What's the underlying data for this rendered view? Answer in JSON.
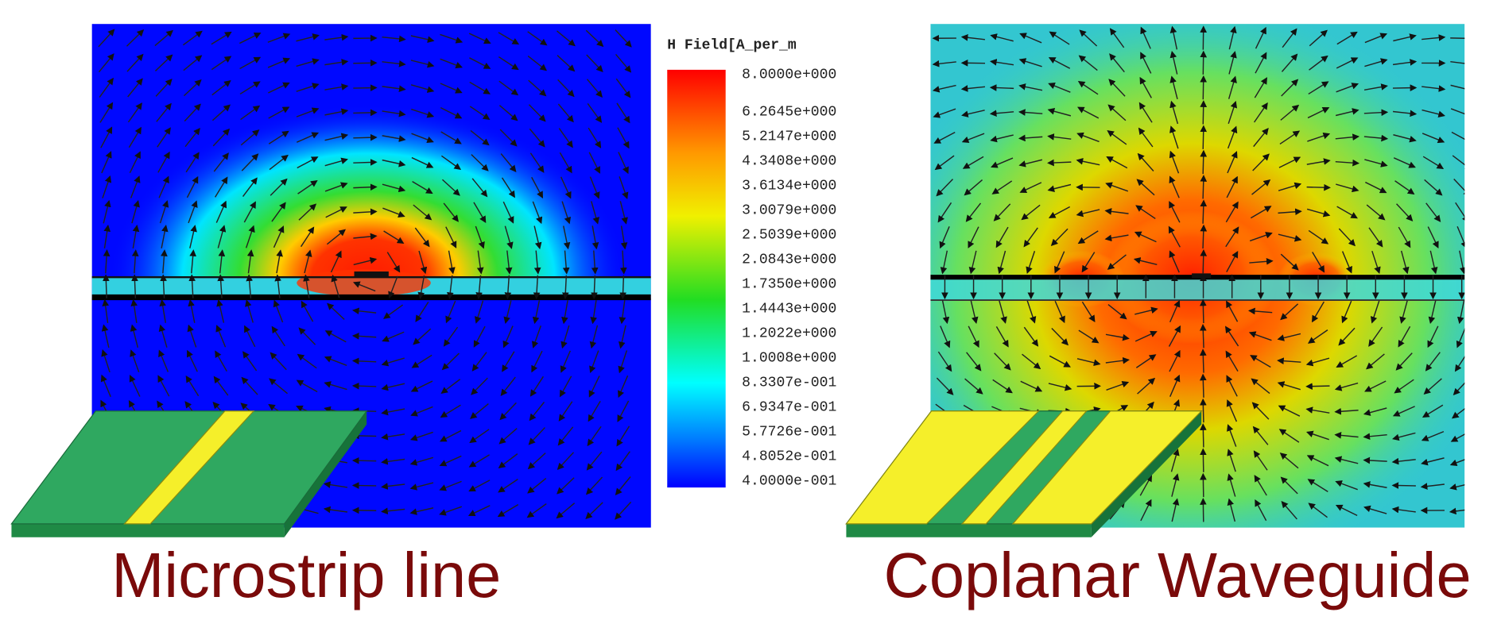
{
  "legend": {
    "title": "H Field[A_per_m",
    "labels": [
      "8.0000e+000",
      "6.2645e+000",
      "5.2147e+000",
      "4.3408e+000",
      "3.6134e+000",
      "3.0079e+000",
      "2.5039e+000",
      "2.0843e+000",
      "1.7350e+000",
      "1.4443e+000",
      "1.2022e+000",
      "1.0008e+000",
      "8.3307e-001",
      "6.9347e-001",
      "5.7726e-001",
      "4.8052e-001",
      "4.0000e-001"
    ]
  },
  "captions": {
    "left": "Microstrip line",
    "right": "Coplanar Waveguide"
  }
}
